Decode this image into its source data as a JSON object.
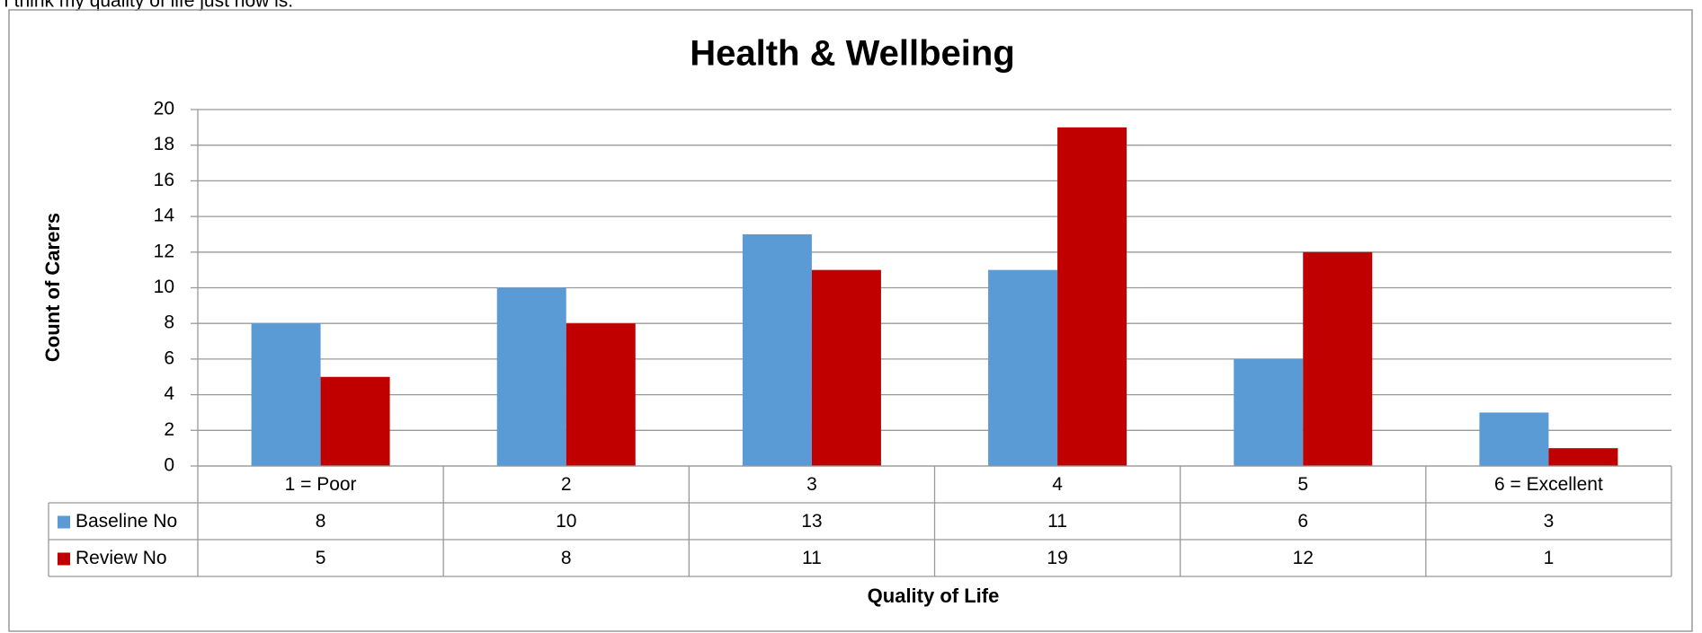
{
  "header_text": "I think my quality of life just now is:",
  "chart_data": {
    "type": "bar",
    "title": "Health & Wellbeing",
    "categories": [
      "1 = Poor",
      "2",
      "3",
      "4",
      "5",
      "6 = Excellent"
    ],
    "series": [
      {
        "name": "Baseline No",
        "color": "#5b9bd5",
        "values": [
          8,
          10,
          13,
          11,
          6,
          3
        ]
      },
      {
        "name": "Review No",
        "color": "#c00000",
        "values": [
          5,
          8,
          11,
          19,
          12,
          1
        ]
      }
    ],
    "ylim": [
      0,
      20
    ],
    "yticks": [
      0,
      2,
      4,
      6,
      8,
      10,
      12,
      14,
      16,
      18,
      20
    ],
    "grid": true,
    "x_label": "Quality of Life",
    "y_label": "Count of Carers",
    "data_table": true
  }
}
